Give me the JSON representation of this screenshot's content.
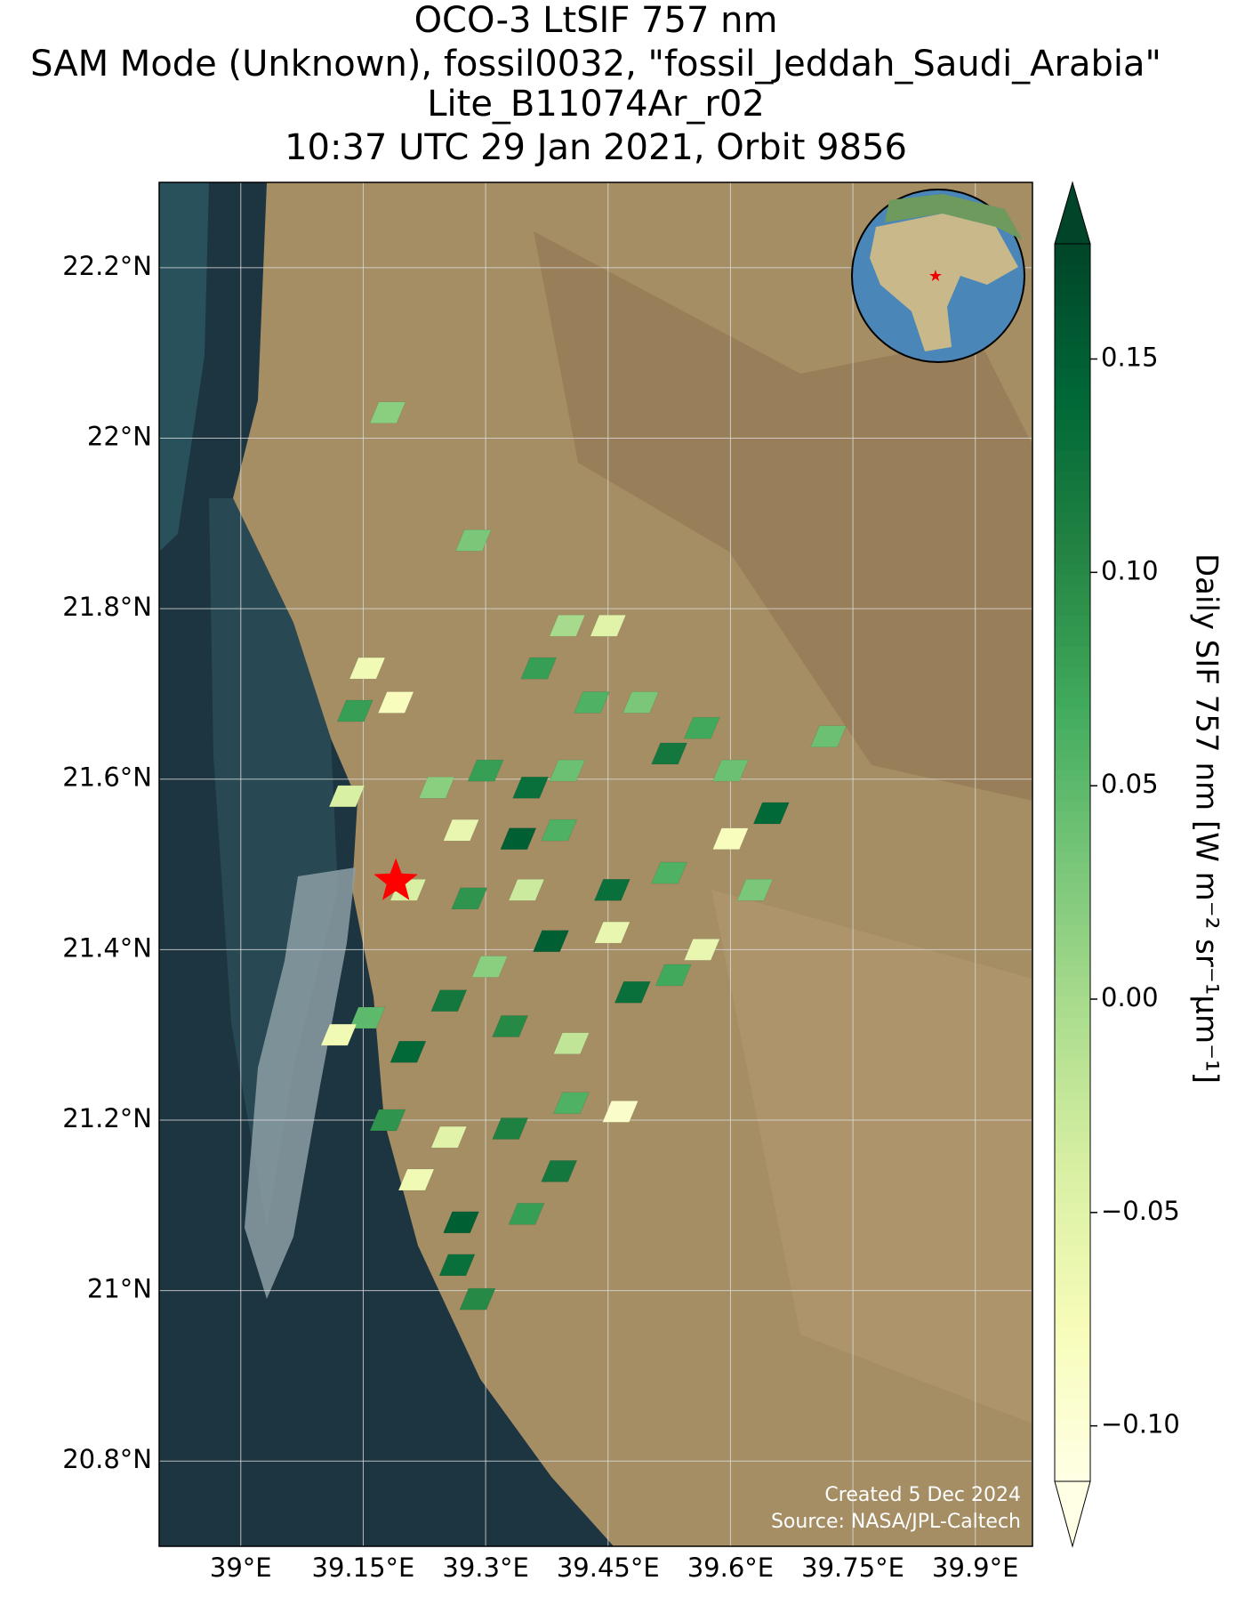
{
  "chart_data": {
    "type": "map",
    "title": [
      "OCO-3 LtSIF 757 nm",
      "SAM Mode (Unknown), fossil0032, \"fossil_Jeddah_Saudi_Arabia\"",
      "Lite_B11074Ar_r02",
      "10:37 UTC 29 Jan 2021, Orbit 9856"
    ],
    "xlim": [
      38.9,
      39.97
    ],
    "ylim": [
      20.7,
      22.3
    ],
    "xticks": [
      {
        "value": 39,
        "label": "39°E"
      },
      {
        "value": 39.15,
        "label": "39.15°E"
      },
      {
        "value": 39.3,
        "label": "39.3°E"
      },
      {
        "value": 39.45,
        "label": "39.45°E"
      },
      {
        "value": 39.6,
        "label": "39.6°E"
      },
      {
        "value": 39.75,
        "label": "39.75°E"
      },
      {
        "value": 39.9,
        "label": "39.9°E"
      }
    ],
    "yticks": [
      {
        "value": 20.8,
        "label": "20.8°N"
      },
      {
        "value": 21,
        "label": "21°N"
      },
      {
        "value": 21.2,
        "label": "21.2°N"
      },
      {
        "value": 21.4,
        "label": "21.4°N"
      },
      {
        "value": 21.6,
        "label": "21.6°N"
      },
      {
        "value": 21.8,
        "label": "21.8°N"
      },
      {
        "value": 22,
        "label": "22°N"
      },
      {
        "value": 22.2,
        "label": "22.2°N"
      }
    ],
    "grid": true,
    "colormap": "YlGn",
    "clim": [
      -0.113,
      0.177
    ],
    "cticks": [
      {
        "value": -0.1,
        "label": "−0.10"
      },
      {
        "value": -0.05,
        "label": "−0.05"
      },
      {
        "value": 0,
        "label": "0.00"
      },
      0.05,
      {
        "value": 0.1,
        "label": "0.10"
      },
      0.15
    ],
    "colorbar_label": "Daily SIF 757 nm [W m⁻² sr⁻¹μm⁻¹]",
    "site": {
      "lon": 39.19,
      "lat": 21.48
    },
    "lon": [
      39.18,
      39.285,
      39.4,
      39.45,
      39.365,
      39.43,
      39.49,
      39.155,
      39.14,
      39.19,
      39.565,
      39.6,
      39.525,
      39.72,
      39.13,
      39.24,
      39.3,
      39.355,
      39.4,
      39.27,
      39.34,
      39.39,
      39.205,
      39.28,
      39.35,
      39.455,
      39.525,
      39.6,
      39.65,
      39.63,
      39.305,
      39.38,
      39.455,
      39.255,
      39.155,
      39.12,
      39.205,
      39.33,
      39.405,
      39.48,
      39.53,
      39.565,
      39.18,
      39.255,
      39.33,
      39.405,
      39.465,
      39.215,
      39.27,
      39.35,
      39.39,
      39.265,
      39.29
    ],
    "lat": [
      22.03,
      21.88,
      21.78,
      21.78,
      21.73,
      21.69,
      21.69,
      21.73,
      21.68,
      21.69,
      21.66,
      21.61,
      21.63,
      21.65,
      21.58,
      21.59,
      21.61,
      21.59,
      21.61,
      21.54,
      21.53,
      21.54,
      21.47,
      21.46,
      21.47,
      21.47,
      21.49,
      21.53,
      21.56,
      21.47,
      21.38,
      21.41,
      21.42,
      21.34,
      21.32,
      21.3,
      21.28,
      21.31,
      21.29,
      21.35,
      21.37,
      21.4,
      21.2,
      21.18,
      21.19,
      21.22,
      21.21,
      21.13,
      21.08,
      21.09,
      21.14,
      21.03,
      20.99
    ],
    "values": [
      0.02,
      0.03,
      0.0,
      -0.05,
      0.08,
      0.06,
      0.03,
      -0.07,
      0.08,
      -0.08,
      0.07,
      0.04,
      0.12,
      0.04,
      -0.04,
      0.02,
      0.08,
      0.13,
      0.04,
      -0.06,
      0.15,
      0.06,
      -0.04,
      0.09,
      -0.03,
      0.13,
      0.06,
      -0.08,
      0.14,
      0.03,
      0.02,
      0.15,
      -0.06,
      0.12,
      0.05,
      -0.07,
      0.14,
      0.1,
      -0.02,
      0.13,
      0.07,
      -0.06,
      0.09,
      -0.05,
      0.11,
      0.06,
      -0.09,
      -0.07,
      0.15,
      0.08,
      0.12,
      0.13,
      0.1
    ],
    "credits": [
      "Created 5 Dec 2024",
      "Source: NASA/JPL-Caltech"
    ]
  }
}
